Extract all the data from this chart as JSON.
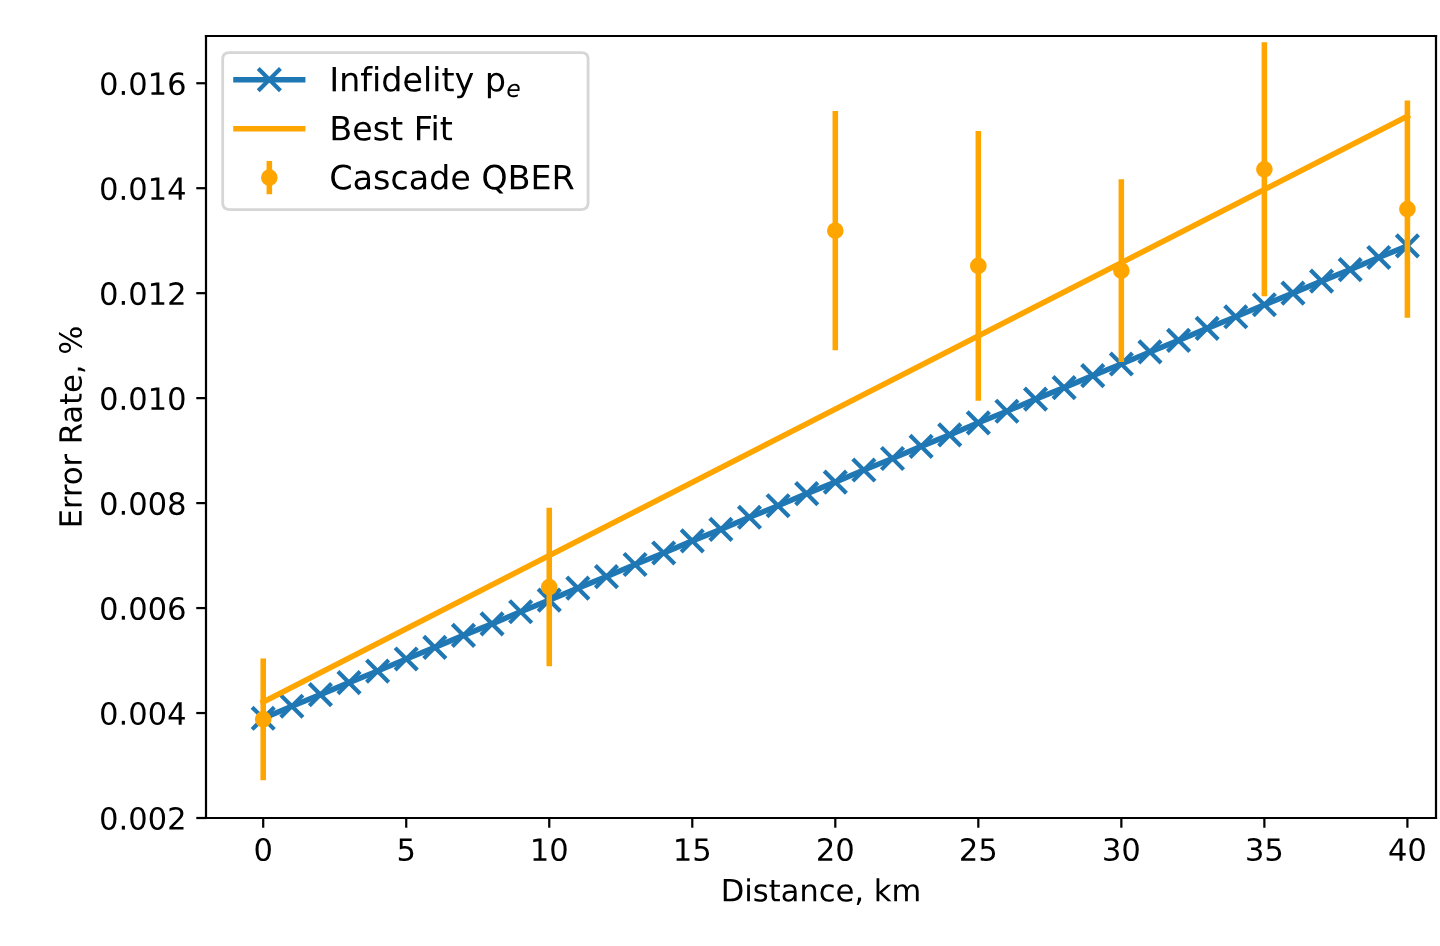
{
  "chart_data": {
    "type": "line",
    "xlabel": "Distance, km",
    "ylabel": "Error Rate, %",
    "xlim": [
      -2,
      41
    ],
    "xticks": [
      0,
      5,
      10,
      15,
      20,
      25,
      30,
      35,
      40
    ],
    "ylim": [
      0.002,
      0.0169
    ],
    "yticks": [
      {
        "value": 0.002,
        "label": "0.002"
      },
      {
        "value": 0.004,
        "label": "0.004"
      },
      {
        "value": 0.006,
        "label": "0.006"
      },
      {
        "value": 0.008,
        "label": "0.008"
      },
      {
        "value": 0.01,
        "label": "0.010"
      },
      {
        "value": 0.012,
        "label": "0.012"
      },
      {
        "value": 0.014,
        "label": "0.014"
      },
      {
        "value": 0.016,
        "label": "0.016"
      }
    ],
    "grid": false,
    "legend": "top left",
    "series": [
      {
        "name": "Infidelity p$_{e}$",
        "color": "#1f77b4",
        "marker": "cross",
        "x": [
          0,
          1,
          2,
          3,
          4,
          5,
          6,
          7,
          8,
          9,
          10,
          11,
          12,
          13,
          14,
          15,
          16,
          17,
          18,
          19,
          20,
          21,
          22,
          23,
          24,
          25,
          26,
          27,
          28,
          29,
          30,
          31,
          32,
          33,
          34,
          35,
          36,
          37,
          38,
          39,
          40
        ],
        "values": [
          0.0039,
          0.00413,
          0.00435,
          0.00458,
          0.0048,
          0.00503,
          0.00525,
          0.00548,
          0.0057,
          0.00593,
          0.00615,
          0.00638,
          0.0066,
          0.00683,
          0.00705,
          0.00728,
          0.0075,
          0.00773,
          0.00795,
          0.00818,
          0.0084,
          0.00863,
          0.00885,
          0.00908,
          0.0093,
          0.00953,
          0.00975,
          0.00998,
          0.0102,
          0.01043,
          0.01065,
          0.01088,
          0.0111,
          0.01133,
          0.01155,
          0.01178,
          0.012,
          0.01223,
          0.01245,
          0.01268,
          0.0129
        ]
      },
      {
        "name": "Best Fit",
        "color": "#ffa500",
        "marker": "none",
        "x": [
          0,
          40
        ],
        "values": [
          0.00421,
          0.01537
        ]
      },
      {
        "name": "Cascade QBER",
        "type": "scatter",
        "color": "#ffa500",
        "marker": "circle",
        "x": [
          0,
          10,
          20,
          25,
          30,
          35,
          40
        ],
        "values": [
          0.00388,
          0.0064,
          0.01319,
          0.01252,
          0.01243,
          0.01436,
          0.0136
        ],
        "errors": [
          0.00116,
          0.00151,
          0.00228,
          0.00257,
          0.00174,
          0.00242,
          0.00207
        ]
      }
    ]
  }
}
